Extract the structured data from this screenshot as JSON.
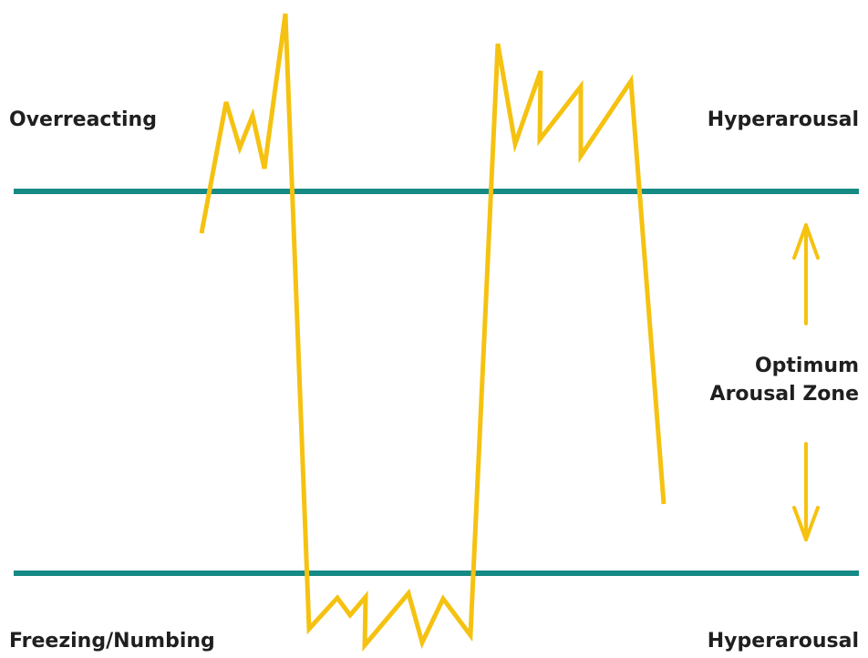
{
  "labels": {
    "top_left": "Overreacting",
    "top_right": "Hyperarousal",
    "middle_right_line1": "Optimum",
    "middle_right_line2": "Arousal Zone",
    "bottom_left": "Freezing/Numbing",
    "bottom_right": "Hyperarousal"
  },
  "colors": {
    "zone_boundary": "#168a84",
    "arousal_line": "#f5c211",
    "arrow": "#f5c211",
    "text": "#1f1f1f"
  },
  "icons": {
    "up_arrow": "up-arrow-icon",
    "down_arrow": "down-arrow-icon"
  }
}
